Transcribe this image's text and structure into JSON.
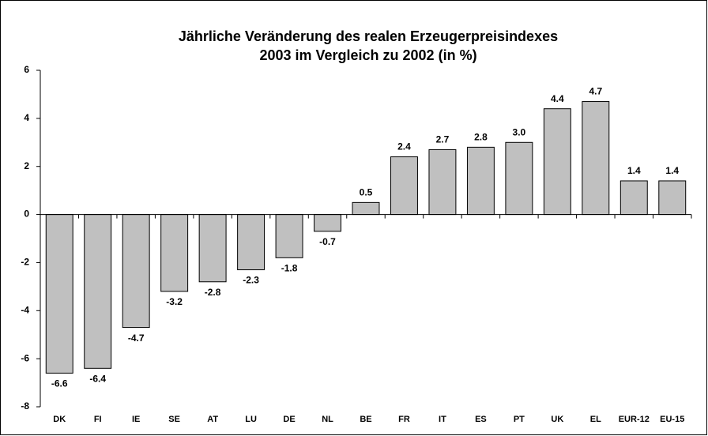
{
  "chart_data": {
    "type": "bar",
    "title": "Jährliche Veränderung des realen Erzeugerpreisindexes",
    "subtitle": "2003 im Vergleich zu 2002 (in %)",
    "categories": [
      "DK",
      "FI",
      "IE",
      "SE",
      "AT",
      "LU",
      "DE",
      "NL",
      "BE",
      "FR",
      "IT",
      "ES",
      "PT",
      "UK",
      "EL",
      "EUR-12",
      "EU-15"
    ],
    "values": [
      -6.6,
      -6.4,
      -4.7,
      -3.2,
      -2.8,
      -2.3,
      -1.8,
      -0.7,
      0.5,
      2.4,
      2.7,
      2.8,
      3.0,
      4.4,
      4.7,
      1.4,
      1.4
    ],
    "value_labels": [
      "-6.6",
      "-6.4",
      "-4.7",
      "-3.2",
      "-2.8",
      "-2.3",
      "-1.8",
      "-0.7",
      "0.5",
      "2.4",
      "2.7",
      "2.8",
      "3.0",
      "4.4",
      "4.7",
      "1.4",
      "1.4"
    ],
    "color": "#c0c0c0",
    "ylim": [
      -8,
      6
    ],
    "yticks": [
      -8,
      -6,
      -4,
      -2,
      0,
      2,
      4,
      6
    ],
    "grid": false
  }
}
